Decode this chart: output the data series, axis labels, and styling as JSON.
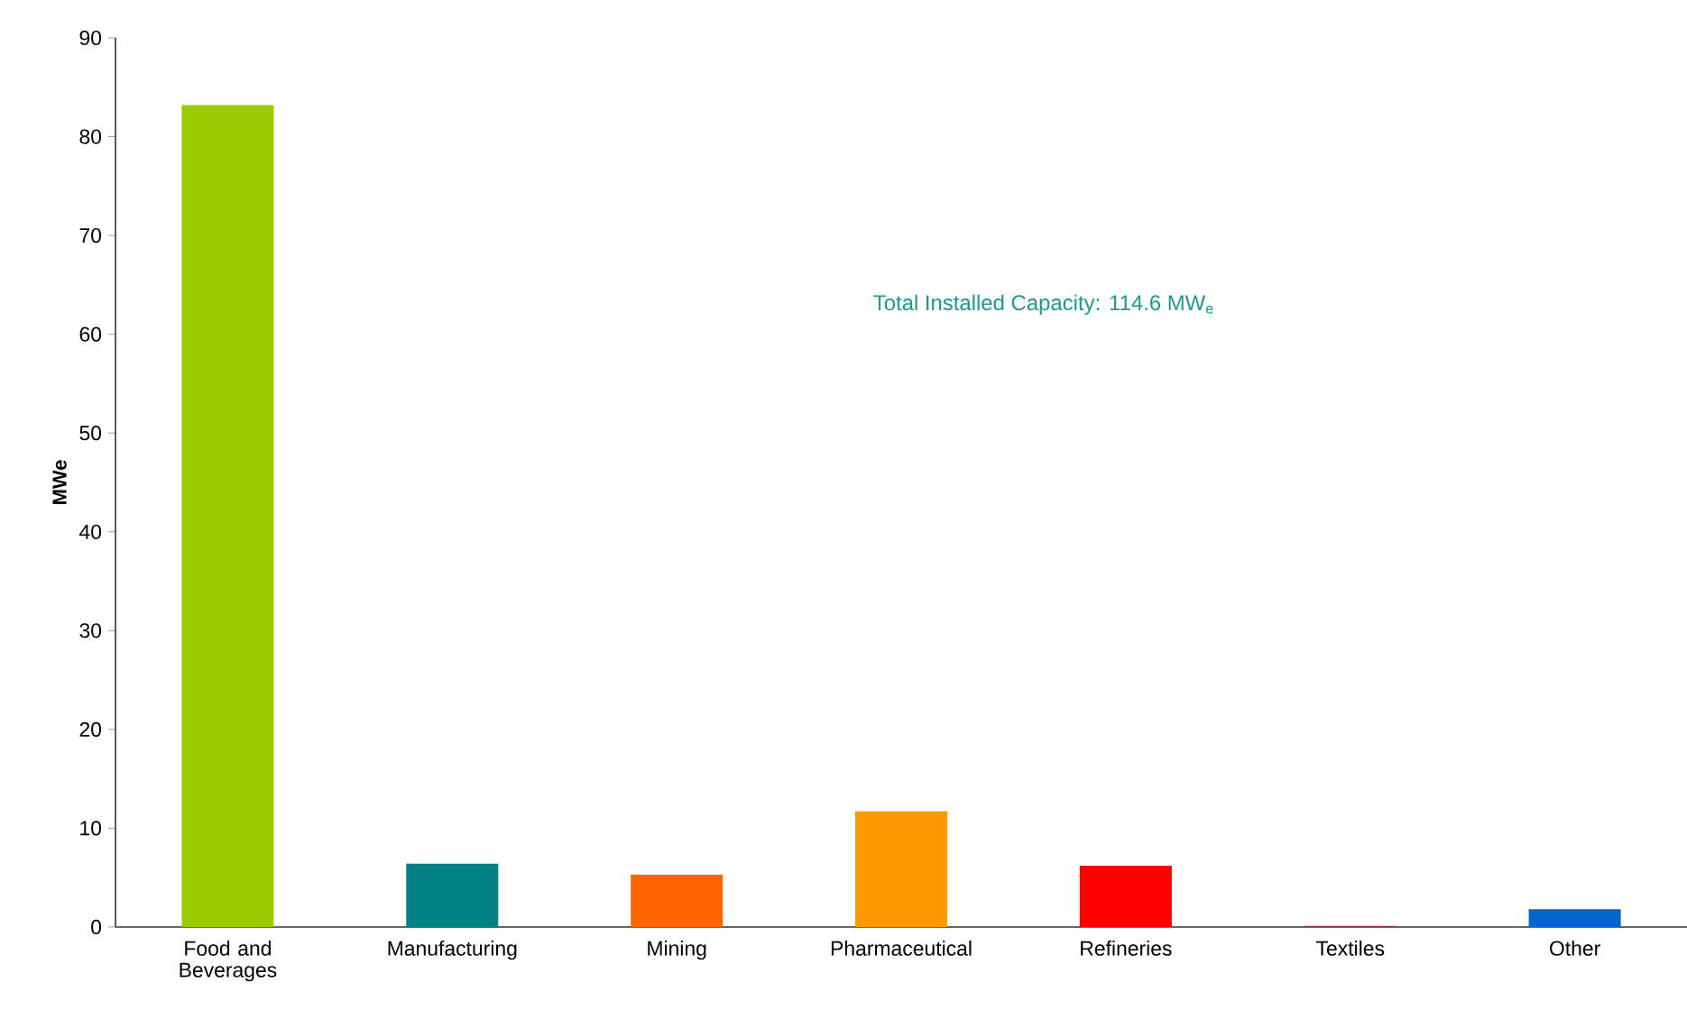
{
  "chart_data": {
    "type": "bar",
    "ylabel": "MWe",
    "categories": [
      "Food and Beverages",
      "Manufacturing",
      "Mining",
      "Pharmaceutical",
      "Refineries",
      "Textiles",
      "Other"
    ],
    "values": [
      83.2,
      6.4,
      5.3,
      11.7,
      6.2,
      0.1,
      1.8
    ],
    "colors": [
      "#9bcb00",
      "#008080",
      "#ff6600",
      "#ff9900",
      "#ff0000",
      "#993366",
      "#0066cc"
    ],
    "ylim": [
      0,
      90
    ],
    "yticks": [
      0,
      10,
      20,
      30,
      40,
      50,
      60,
      70,
      80,
      90
    ],
    "grid": false,
    "annotations": [
      "Total Installed Capacity: 114.6 MW$_{e}$"
    ]
  }
}
